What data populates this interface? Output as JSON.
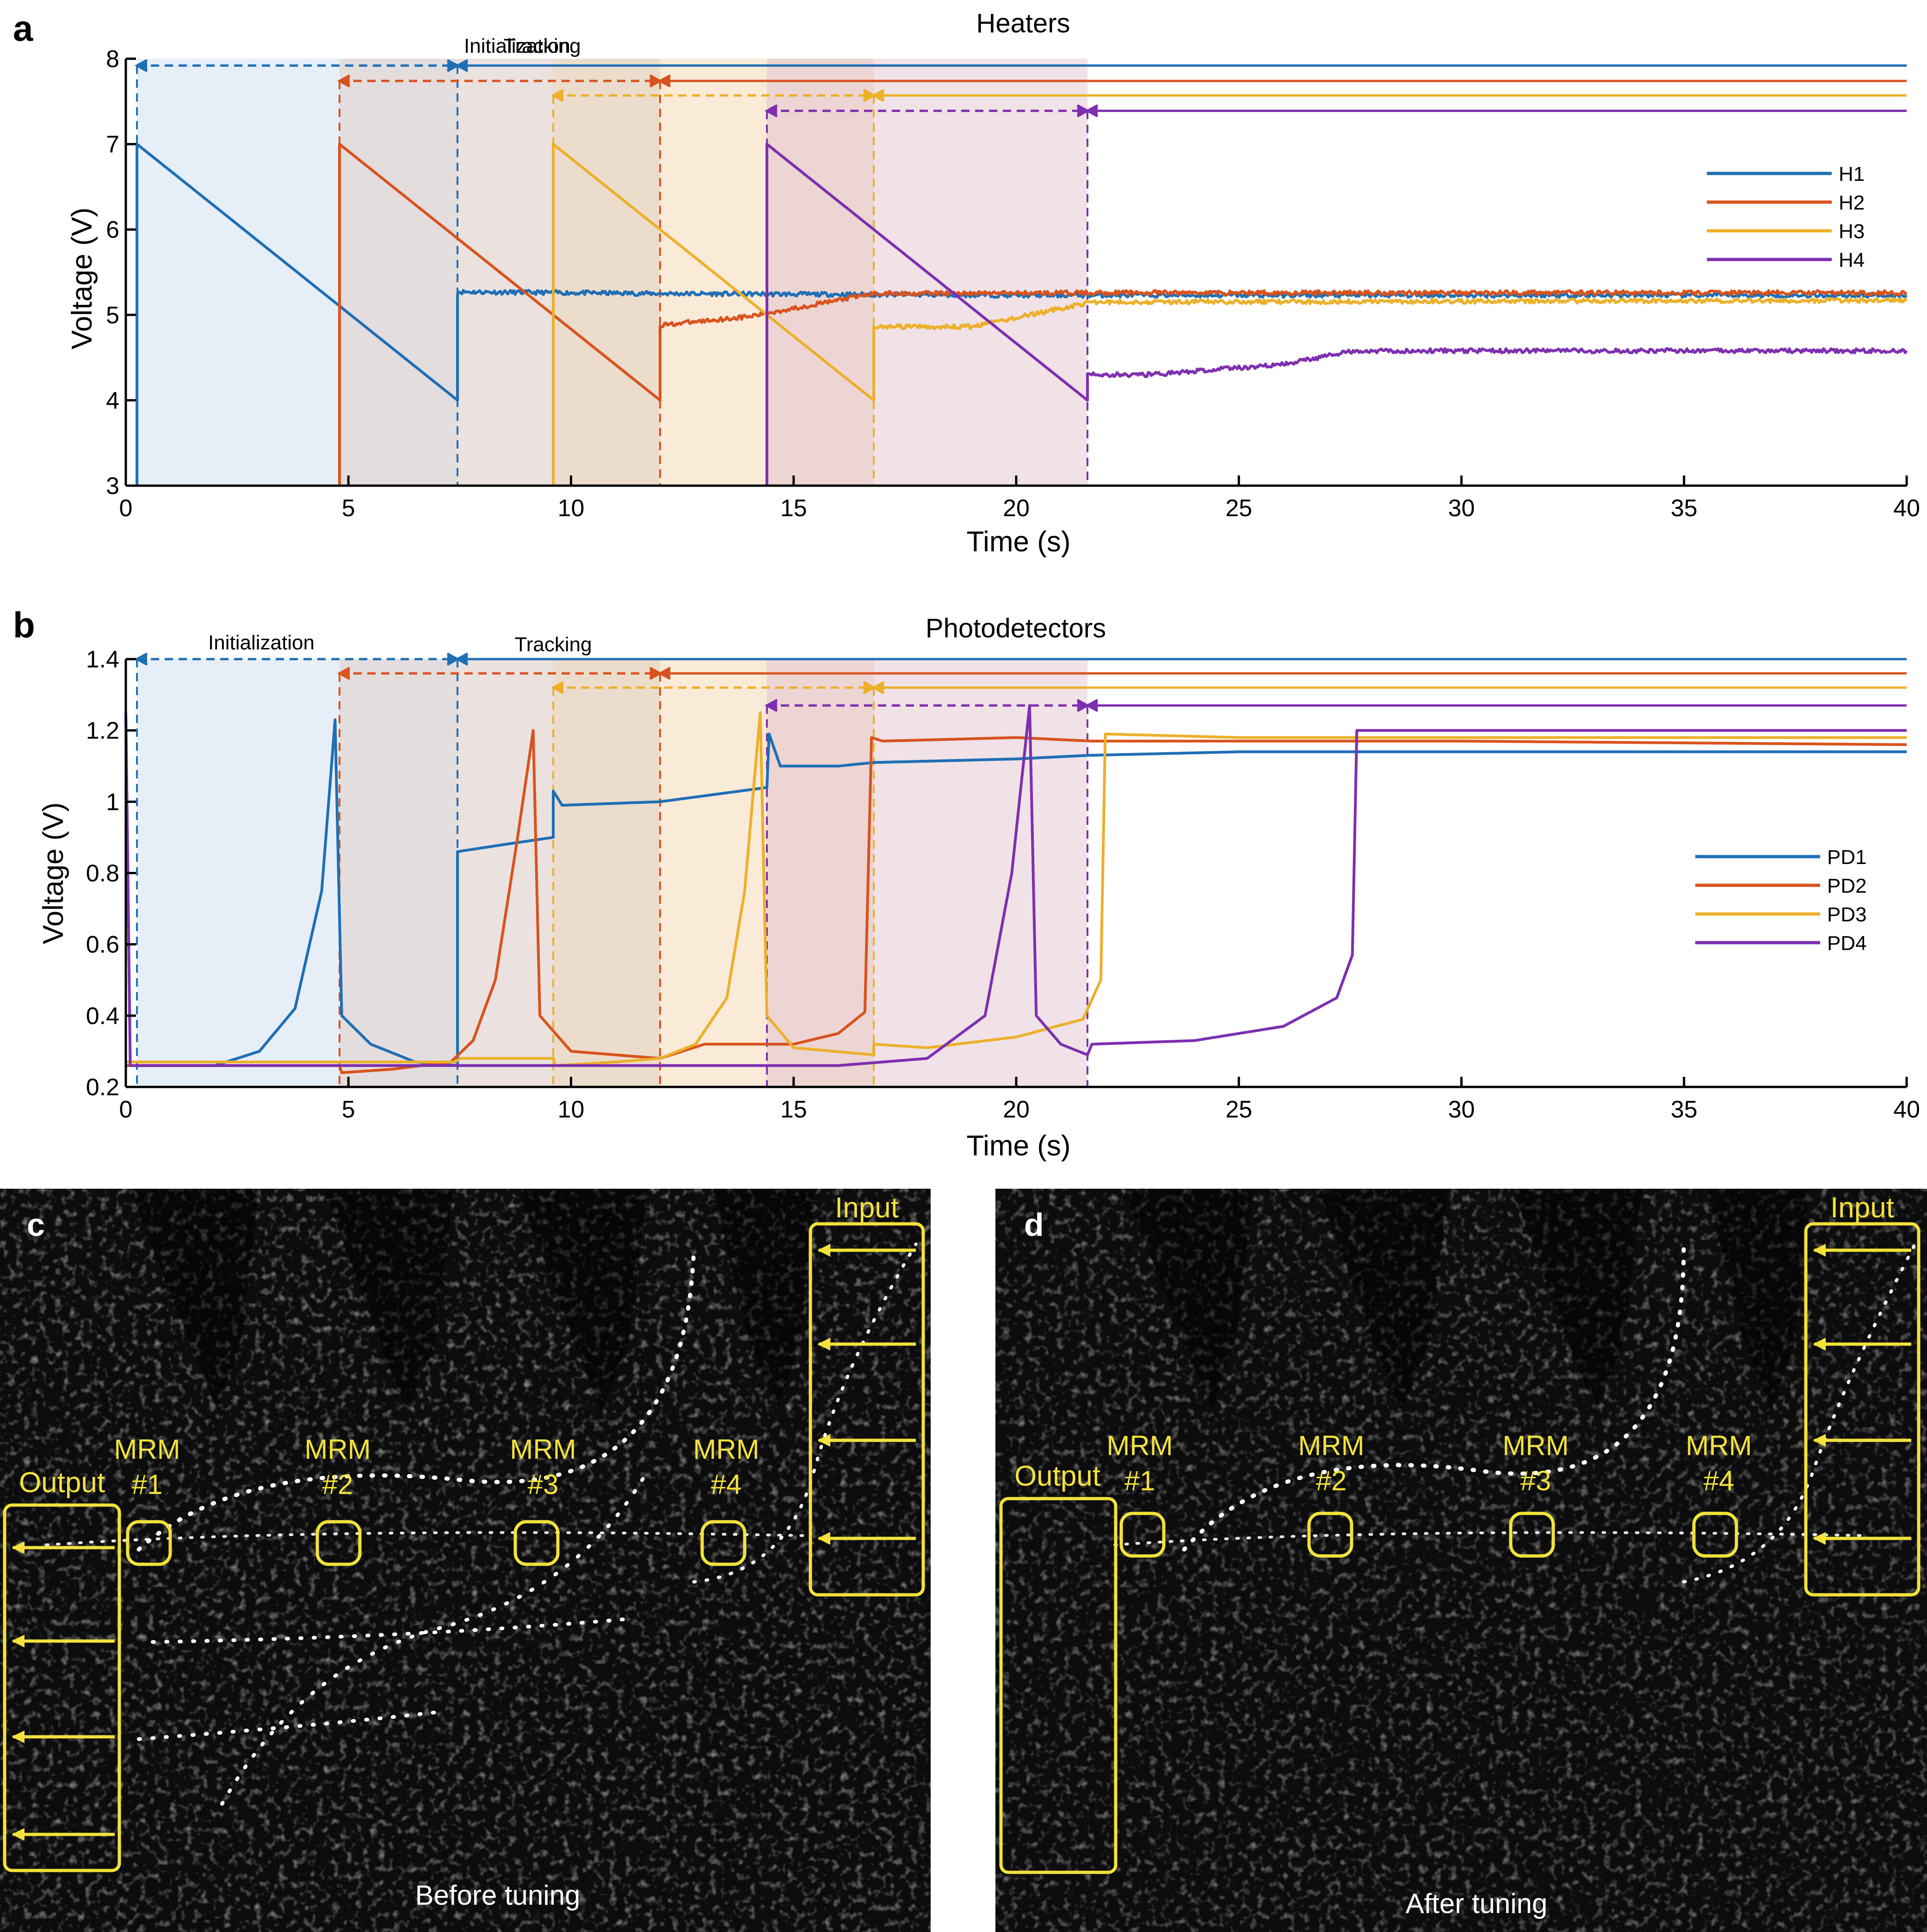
{
  "colors": {
    "blue": "#1f6fb5",
    "orange": "#d9531e",
    "yellow": "#ecb02a",
    "purple": "#7e2fb0",
    "annot_yellow": "#f2e23a",
    "axis": "#000000"
  },
  "chart_data": [
    {
      "panel": "a",
      "type": "line",
      "title": "Heaters",
      "xlabel": "Time (s)",
      "ylabel": "Voltage (V)",
      "xlim": [
        0,
        40
      ],
      "ylim": [
        3,
        8
      ],
      "xticks": [
        0,
        5,
        10,
        15,
        20,
        25,
        30,
        35,
        40
      ],
      "yticks": [
        3,
        4,
        5,
        6,
        7,
        8
      ],
      "xtick_labels": [
        "0",
        "5",
        "10",
        "15",
        "20",
        "25",
        "30",
        "35",
        "40"
      ],
      "ytick_labels": [
        "3",
        "4",
        "5",
        "6",
        "7",
        "8"
      ],
      "phase_labels": {
        "initialization": "Initialization",
        "tracking": "Tracking"
      },
      "legend_position": "right",
      "series": [
        {
          "name": "H1",
          "color_key": "blue",
          "points": [
            [
              0.25,
              3.0
            ],
            [
              0.25,
              7.0
            ],
            [
              7.45,
              4.0
            ],
            [
              7.45,
              5.27
            ],
            [
              12,
              5.25
            ],
            [
              20,
              5.23
            ],
            [
              40,
              5.23
            ]
          ],
          "noisy_from": 7.45,
          "init_start": 0.25,
          "init_end": 7.45,
          "tracking_end": 12.0,
          "arrow_y": 7.92
        },
        {
          "name": "H2",
          "color_key": "orange",
          "points": [
            [
              4.8,
              3.0
            ],
            [
              4.8,
              7.0
            ],
            [
              12.0,
              4.0
            ],
            [
              12.0,
              4.88
            ],
            [
              14,
              4.98
            ],
            [
              16.8,
              5.25
            ],
            [
              22,
              5.26
            ],
            [
              40,
              5.26
            ]
          ],
          "noisy_from": 12.0,
          "init_start": 4.8,
          "init_end": 12.0,
          "tracking_end": 16.8,
          "arrow_y": 7.74
        },
        {
          "name": "H3",
          "color_key": "yellow",
          "points": [
            [
              9.6,
              3.0
            ],
            [
              9.6,
              7.0
            ],
            [
              16.8,
              4.0
            ],
            [
              16.8,
              4.86
            ],
            [
              19,
              4.86
            ],
            [
              21.7,
              5.15
            ],
            [
              40,
              5.17
            ]
          ],
          "noisy_from": 16.8,
          "init_start": 9.6,
          "init_end": 16.8,
          "tracking_end": 21.6,
          "arrow_y": 7.57
        },
        {
          "name": "H4",
          "color_key": "purple",
          "points": [
            [
              14.4,
              3.0
            ],
            [
              14.4,
              7.0
            ],
            [
              21.6,
              4.0
            ],
            [
              21.6,
              4.3
            ],
            [
              23,
              4.3
            ],
            [
              26,
              4.42
            ],
            [
              27.6,
              4.58
            ],
            [
              40,
              4.58
            ]
          ],
          "noisy_from": 21.6,
          "init_start": 14.4,
          "init_end": 21.6,
          "tracking_end": 21.6,
          "arrow_y": 7.39
        }
      ]
    },
    {
      "panel": "b",
      "type": "line",
      "title": "Photodetectors",
      "xlabel": "Time (s)",
      "ylabel": "Voltage (V)",
      "xlim": [
        0,
        40
      ],
      "ylim": [
        0.2,
        1.4
      ],
      "xticks": [
        0,
        5,
        10,
        15,
        20,
        25,
        30,
        35,
        40
      ],
      "yticks": [
        0.2,
        0.4,
        0.6,
        0.8,
        1.0,
        1.2,
        1.4
      ],
      "xtick_labels": [
        "0",
        "5",
        "10",
        "15",
        "20",
        "25",
        "30",
        "35",
        "40"
      ],
      "ytick_labels": [
        "0.2",
        "0.4",
        "0.6",
        "0.8",
        "1",
        "1.2",
        "1.4"
      ],
      "phase_labels": {
        "initialization": "Initialization",
        "tracking": "Tracking"
      },
      "legend_position": "right",
      "series": [
        {
          "name": "PD1",
          "color_key": "blue",
          "arrow_y": 1.4,
          "points": [
            [
              0.0,
              1.25
            ],
            [
              0.1,
              0.26
            ],
            [
              2.0,
              0.26
            ],
            [
              3.0,
              0.3
            ],
            [
              3.8,
              0.42
            ],
            [
              4.4,
              0.75
            ],
            [
              4.7,
              1.23
            ],
            [
              4.85,
              0.4
            ],
            [
              5.5,
              0.32
            ],
            [
              6.5,
              0.27
            ],
            [
              7.45,
              0.26
            ],
            [
              7.45,
              0.86
            ],
            [
              8.5,
              0.88
            ],
            [
              9.6,
              0.9
            ],
            [
              9.6,
              1.03
            ],
            [
              9.8,
              0.99
            ],
            [
              12,
              1.0
            ],
            [
              14.4,
              1.04
            ],
            [
              14.45,
              1.19
            ],
            [
              14.7,
              1.1
            ],
            [
              16,
              1.1
            ],
            [
              16.8,
              1.11
            ],
            [
              20,
              1.12
            ],
            [
              21.6,
              1.13
            ],
            [
              25,
              1.14
            ],
            [
              30,
              1.14
            ],
            [
              40,
              1.14
            ]
          ]
        },
        {
          "name": "PD2",
          "color_key": "orange",
          "arrow_y": 1.36,
          "points": [
            [
              0.0,
              0.26
            ],
            [
              4.8,
              0.26
            ],
            [
              4.85,
              0.24
            ],
            [
              6,
              0.25
            ],
            [
              7.3,
              0.27
            ],
            [
              7.8,
              0.33
            ],
            [
              8.3,
              0.5
            ],
            [
              8.8,
              0.9
            ],
            [
              9.15,
              1.2
            ],
            [
              9.3,
              0.4
            ],
            [
              10,
              0.3
            ],
            [
              12,
              0.28
            ],
            [
              13,
              0.32
            ],
            [
              14,
              0.32
            ],
            [
              15,
              0.32
            ],
            [
              16,
              0.35
            ],
            [
              16.6,
              0.41
            ],
            [
              16.75,
              1.18
            ],
            [
              17,
              1.17
            ],
            [
              20,
              1.18
            ],
            [
              21.7,
              1.17
            ],
            [
              25,
              1.17
            ],
            [
              30,
              1.17
            ],
            [
              40,
              1.16
            ]
          ]
        },
        {
          "name": "PD3",
          "color_key": "yellow",
          "arrow_y": 1.32,
          "points": [
            [
              0.0,
              0.27
            ],
            [
              7.4,
              0.27
            ],
            [
              7.5,
              0.28
            ],
            [
              9.6,
              0.28
            ],
            [
              9.65,
              0.26
            ],
            [
              11,
              0.27
            ],
            [
              12,
              0.28
            ],
            [
              12.8,
              0.32
            ],
            [
              13.5,
              0.45
            ],
            [
              13.9,
              0.75
            ],
            [
              14.25,
              1.25
            ],
            [
              14.4,
              0.4
            ],
            [
              15,
              0.31
            ],
            [
              16.8,
              0.29
            ],
            [
              16.8,
              0.32
            ],
            [
              18,
              0.31
            ],
            [
              20,
              0.34
            ],
            [
              21.5,
              0.39
            ],
            [
              21.9,
              0.5
            ],
            [
              22.0,
              1.19
            ],
            [
              25,
              1.18
            ],
            [
              30,
              1.18
            ],
            [
              40,
              1.18
            ]
          ]
        },
        {
          "name": "PD4",
          "color_key": "purple",
          "arrow_y": 1.27,
          "points": [
            [
              0.0,
              1.25
            ],
            [
              0.1,
              0.26
            ],
            [
              12,
              0.26
            ],
            [
              14.4,
              0.26
            ],
            [
              16,
              0.26
            ],
            [
              18,
              0.28
            ],
            [
              19.3,
              0.4
            ],
            [
              19.9,
              0.8
            ],
            [
              20.3,
              1.27
            ],
            [
              20.45,
              0.4
            ],
            [
              21,
              0.32
            ],
            [
              21.6,
              0.29
            ],
            [
              21.7,
              0.32
            ],
            [
              24,
              0.33
            ],
            [
              26,
              0.37
            ],
            [
              27.2,
              0.45
            ],
            [
              27.55,
              0.57
            ],
            [
              27.65,
              1.2
            ],
            [
              28,
              1.2
            ],
            [
              35,
              1.2
            ],
            [
              40,
              1.2
            ]
          ]
        }
      ]
    }
  ],
  "panel_labels": {
    "a": "a",
    "b": "b",
    "c": "c",
    "d": "d"
  },
  "micrographs": {
    "c": {
      "input": "Input",
      "output": "Output",
      "caption": "Before tuning",
      "mrm": [
        {
          "name": "MRM",
          "num": "#1"
        },
        {
          "name": "MRM",
          "num": "#2"
        },
        {
          "name": "MRM",
          "num": "#3"
        },
        {
          "name": "MRM",
          "num": "#4"
        }
      ]
    },
    "d": {
      "input": "Input",
      "output": "Output",
      "caption": "After tuning",
      "mrm": [
        {
          "name": "MRM",
          "num": "#1"
        },
        {
          "name": "MRM",
          "num": "#2"
        },
        {
          "name": "MRM",
          "num": "#3"
        },
        {
          "name": "MRM",
          "num": "#4"
        }
      ]
    }
  }
}
